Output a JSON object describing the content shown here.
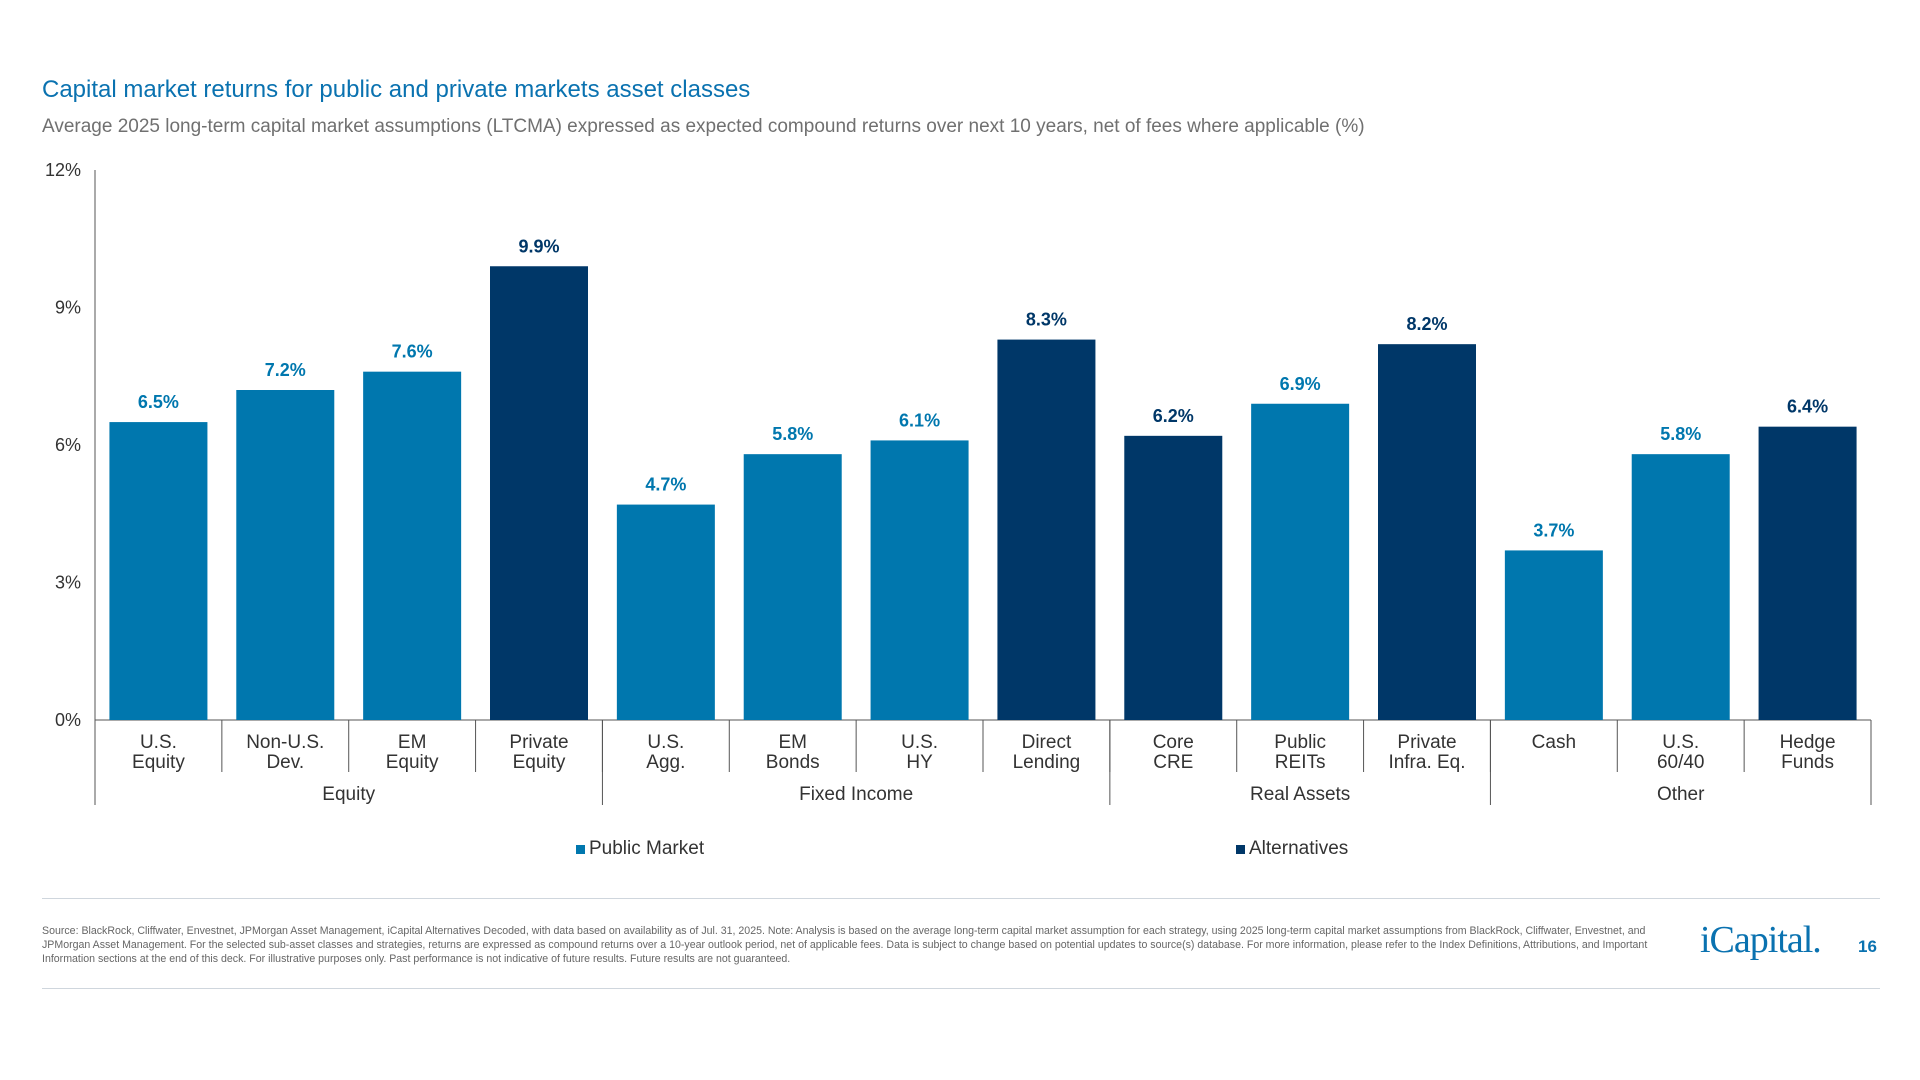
{
  "title": "Capital market returns for public and private markets asset classes",
  "subtitle": "Average 2025 long-term capital market assumptions (LTCMA) expressed as expected compound returns over next 10 years, net of fees where applicable (%)",
  "colors": {
    "Public Market": "#0077ae",
    "Alternatives": "#003768",
    "title": "#0a72b0"
  },
  "chart_data": {
    "type": "bar",
    "ylim": [
      0,
      12
    ],
    "yticks": [
      0,
      3,
      6,
      9,
      12
    ],
    "ytick_labels": [
      "0%",
      "3%",
      "6%",
      "9%",
      "12%"
    ],
    "categories": [
      "U.S.\nEquity",
      "Non-U.S.\nDev.",
      "EM\nEquity",
      "Private\nEquity",
      "U.S.\nAgg.",
      "EM\nBonds",
      "U.S.\nHY",
      "Direct\nLending",
      "Core\nCRE",
      "Public\nREITs",
      "Private\nInfra. Eq.",
      "Cash",
      "U.S.\n60/40",
      "Hedge\nFunds"
    ],
    "values": [
      6.5,
      7.2,
      7.6,
      9.9,
      4.7,
      5.8,
      6.1,
      8.3,
      6.2,
      6.9,
      8.2,
      3.7,
      5.8,
      6.4
    ],
    "data_labels": [
      "6.5%",
      "7.2%",
      "7.6%",
      "9.9%",
      "4.7%",
      "5.8%",
      "6.1%",
      "8.3%",
      "6.2%",
      "6.9%",
      "8.2%",
      "3.7%",
      "5.8%",
      "6.4%"
    ],
    "series_type": [
      "Public Market",
      "Public Market",
      "Public Market",
      "Alternatives",
      "Public Market",
      "Public Market",
      "Public Market",
      "Alternatives",
      "Alternatives",
      "Public Market",
      "Alternatives",
      "Public Market",
      "Public Market",
      "Alternatives"
    ],
    "groups": [
      {
        "label": "Equity",
        "count": 4
      },
      {
        "label": "Fixed Income",
        "count": 4
      },
      {
        "label": "Real Assets",
        "count": 3
      },
      {
        "label": "Other",
        "count": 3
      }
    ],
    "legend": [
      "Public Market",
      "Alternatives"
    ],
    "legend_position": "bottom",
    "grid": false
  },
  "footer": {
    "source": "Source: BlackRock, Cliffwater, Envestnet, JPMorgan Asset Management, iCapital Alternatives Decoded, with data based on availability as of Jul. 31, 2025. Note: Analysis is based on the average long-term capital market assumption for each strategy, using 2025 long-term capital market assumptions from BlackRock, Cliffwater, Envestnet, and JPMorgan Asset Management. For the selected sub-asset classes and strategies, returns are expressed as compound returns over a 10-year outlook period, net of applicable fees. Data is subject to change based on potential updates to source(s) database. For more information, please refer to the Index Definitions, Attributions, and Important Information sections at the end of this deck. For illustrative purposes only. Past performance is not indicative of future results. Future results are not guaranteed.",
    "logo": "iCapital.",
    "page": "16"
  }
}
